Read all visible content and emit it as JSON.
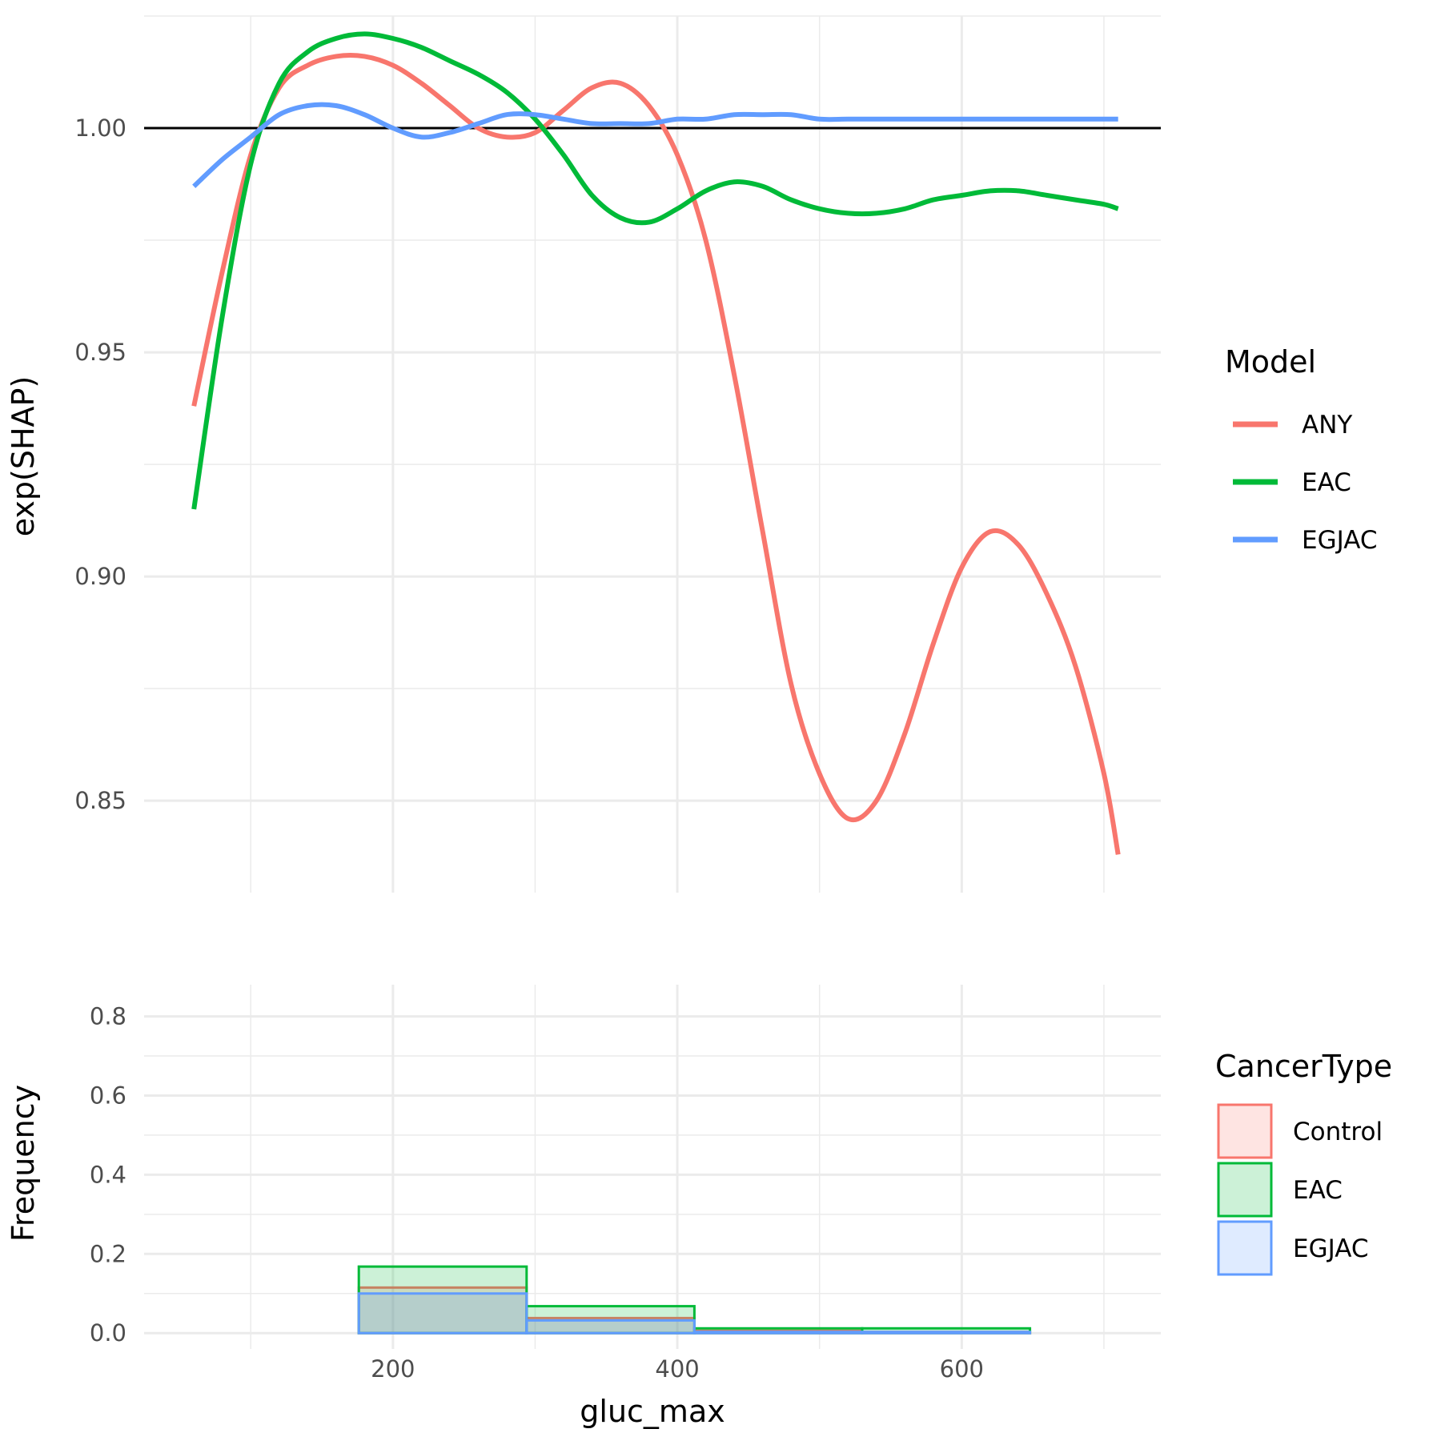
{
  "chart_data": [
    {
      "type": "line",
      "panel": "top",
      "xlabel": "",
      "ylabel": "exp(SHAP)",
      "xlim": [
        25,
        740
      ],
      "ylim": [
        0.8295,
        1.025
      ],
      "y_ticks": [
        0.85,
        0.9,
        0.95,
        1.0
      ],
      "y_tick_labels": [
        "0.85",
        "0.90",
        "0.95",
        "1.00"
      ],
      "x_ticks": [
        200,
        400,
        600
      ],
      "reference_line": 1.0,
      "grid": true,
      "legend": {
        "title": "Model",
        "placement": "right"
      },
      "series": [
        {
          "name": "ANY",
          "color": "#F8766D",
          "x": [
            60,
            80,
            100,
            120,
            140,
            160,
            180,
            200,
            220,
            240,
            260,
            280,
            300,
            320,
            340,
            360,
            380,
            400,
            420,
            440,
            460,
            480,
            500,
            520,
            540,
            560,
            580,
            600,
            620,
            640,
            660,
            680,
            700,
            710
          ],
          "y": [
            0.938,
            0.968,
            0.994,
            1.009,
            1.014,
            1.016,
            1.016,
            1.014,
            1.01,
            1.005,
            1.0,
            0.998,
            0.999,
            1.004,
            1.009,
            1.01,
            1.005,
            0.994,
            0.975,
            0.945,
            0.91,
            0.876,
            0.856,
            0.846,
            0.85,
            0.865,
            0.885,
            0.902,
            0.91,
            0.907,
            0.896,
            0.88,
            0.856,
            0.838
          ]
        },
        {
          "name": "EAC",
          "color": "#00BA38",
          "x": [
            60,
            80,
            100,
            120,
            140,
            160,
            180,
            200,
            220,
            240,
            260,
            280,
            300,
            320,
            340,
            360,
            380,
            400,
            420,
            440,
            460,
            480,
            500,
            520,
            540,
            560,
            580,
            600,
            620,
            640,
            660,
            680,
            700,
            710
          ],
          "y": [
            0.915,
            0.958,
            0.992,
            1.01,
            1.017,
            1.02,
            1.021,
            1.02,
            1.018,
            1.015,
            1.012,
            1.008,
            1.002,
            0.994,
            0.985,
            0.98,
            0.979,
            0.982,
            0.986,
            0.988,
            0.987,
            0.984,
            0.982,
            0.981,
            0.981,
            0.982,
            0.984,
            0.985,
            0.986,
            0.986,
            0.985,
            0.984,
            0.983,
            0.982
          ]
        },
        {
          "name": "EGJAC",
          "color": "#619CFF",
          "x": [
            60,
            80,
            100,
            120,
            140,
            160,
            180,
            200,
            220,
            240,
            260,
            280,
            300,
            320,
            340,
            360,
            380,
            400,
            420,
            440,
            460,
            480,
            500,
            520,
            540,
            560,
            580,
            600,
            620,
            640,
            660,
            680,
            700,
            710
          ],
          "y": [
            0.987,
            0.993,
            0.998,
            1.003,
            1.005,
            1.005,
            1.003,
            1.0,
            0.998,
            0.999,
            1.001,
            1.003,
            1.003,
            1.002,
            1.001,
            1.001,
            1.001,
            1.002,
            1.002,
            1.003,
            1.003,
            1.003,
            1.002,
            1.002,
            1.002,
            1.002,
            1.002,
            1.002,
            1.002,
            1.002,
            1.002,
            1.002,
            1.002,
            1.002
          ]
        }
      ]
    },
    {
      "type": "bar",
      "panel": "bottom",
      "xlabel": "gluc_max",
      "ylabel": "Frequency",
      "xlim": [
        25,
        740
      ],
      "ylim": [
        -0.04,
        0.88
      ],
      "x_ticks": [
        200,
        400,
        600
      ],
      "x_tick_labels": [
        "200",
        "400",
        "600"
      ],
      "y_ticks": [
        0.0,
        0.2,
        0.4,
        0.6,
        0.8
      ],
      "y_tick_labels": [
        "0.0",
        "0.2",
        "0.4",
        "0.6",
        "0.8"
      ],
      "grid": true,
      "legend": {
        "title": "CancerType",
        "placement": "right"
      },
      "bin_edges": [
        176,
        294,
        412,
        530,
        648
      ],
      "series": [
        {
          "name": "Control",
          "color": "#F8766D",
          "values": [
            0.115,
            0.038,
            0.006,
            0.003
          ]
        },
        {
          "name": "EAC",
          "color": "#00BA38",
          "values": [
            0.168,
            0.068,
            0.012,
            0.012
          ]
        },
        {
          "name": "EGJAC",
          "color": "#619CFF",
          "values": [
            0.1,
            0.032,
            0.003,
            0.003
          ]
        }
      ]
    }
  ]
}
